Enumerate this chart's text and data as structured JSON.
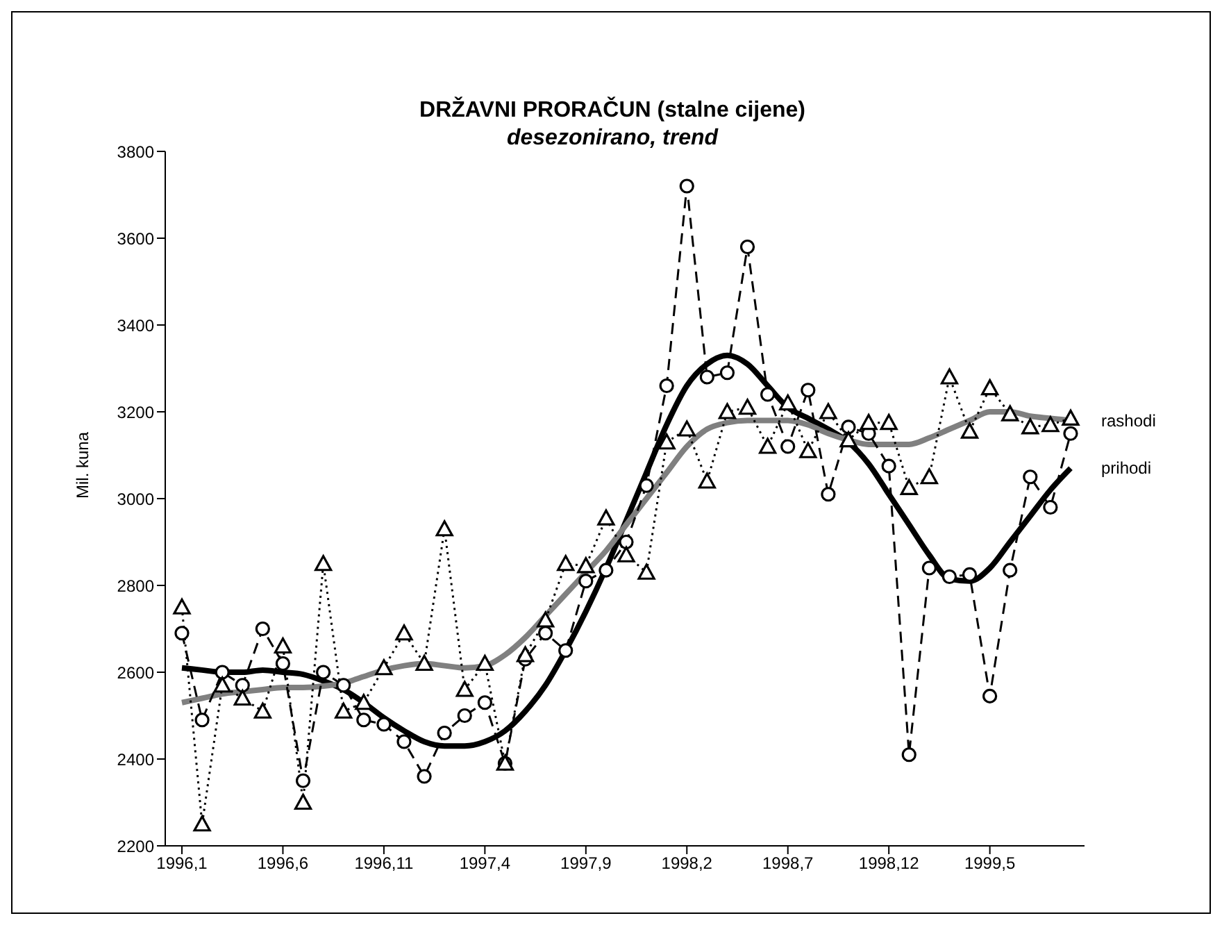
{
  "chart_data": {
    "type": "line",
    "title": "DRŽAVNI PRORAČUN (stalne cijene)",
    "subtitle": "desezonirano, trend",
    "ylabel": "Mil. kuna",
    "categories": [
      "1996,1",
      null,
      null,
      null,
      null,
      "1996,6",
      null,
      null,
      null,
      null,
      "1996,11",
      null,
      null,
      null,
      null,
      "1997,4",
      null,
      null,
      null,
      null,
      "1997,9",
      null,
      null,
      null,
      null,
      "1998,2",
      null,
      null,
      null,
      null,
      "1998,7",
      null,
      null,
      null,
      null,
      "1998,12",
      null,
      null,
      null,
      null,
      "1999,5",
      null,
      null,
      null,
      null
    ],
    "ylim": [
      2200,
      3800
    ],
    "yticks": [
      2200,
      2400,
      2600,
      2800,
      3000,
      3200,
      3400,
      3600,
      3800
    ],
    "series": [
      {
        "color": "#000000",
        "marker": "triangle",
        "line_style": "dotted",
        "values": [
          2750,
          2250,
          2570,
          2540,
          2510,
          2660,
          2300,
          2850,
          2510,
          2530,
          2610,
          2690,
          2620,
          2930,
          2560,
          2620,
          2390,
          2640,
          2720,
          2850,
          2845,
          2955,
          2870,
          2830,
          3130,
          3160,
          3040,
          3200,
          3210,
          3120,
          3220,
          3110,
          3200,
          3135,
          3175,
          3175,
          3025,
          3050,
          3280,
          3155,
          3255,
          3195,
          3165,
          3170,
          3185
        ]
      },
      {
        "color": "#000000",
        "marker": "circle",
        "line_style": "dashed",
        "values": [
          2690,
          2490,
          2600,
          2570,
          2700,
          2620,
          2350,
          2600,
          2570,
          2490,
          2480,
          2440,
          2360,
          2460,
          2500,
          2530,
          2390,
          2630,
          2690,
          2650,
          2810,
          2835,
          2900,
          3030,
          3260,
          3720,
          3280,
          3290,
          3580,
          3240,
          3120,
          3250,
          3010,
          3165,
          3150,
          3075,
          2410,
          2840,
          2820,
          2825,
          2545,
          2835,
          3050,
          2980,
          3150
        ]
      },
      {
        "name": "rashodi",
        "color": "#808080",
        "marker": "none",
        "line_style": "solid",
        "values": [
          2530,
          2540,
          2550,
          2555,
          2560,
          2565,
          2565,
          2568,
          2575,
          2590,
          2605,
          2615,
          2620,
          2615,
          2610,
          2615,
          2640,
          2680,
          2730,
          2780,
          2830,
          2880,
          2940,
          3000,
          3060,
          3120,
          3160,
          3175,
          3180,
          3180,
          3180,
          3170,
          3150,
          3135,
          3125,
          3125,
          3125,
          3140,
          3160,
          3180,
          3200,
          3200,
          3190,
          3185,
          3180
        ]
      },
      {
        "name": "prihodi",
        "color": "#000000",
        "marker": "none",
        "line_style": "solid",
        "values": [
          2610,
          2605,
          2600,
          2600,
          2605,
          2600,
          2595,
          2580,
          2560,
          2530,
          2495,
          2465,
          2440,
          2430,
          2430,
          2440,
          2465,
          2510,
          2570,
          2650,
          2740,
          2840,
          2950,
          3060,
          3170,
          3260,
          3310,
          3330,
          3310,
          3260,
          3210,
          3185,
          3160,
          3130,
          3080,
          3010,
          2940,
          2870,
          2815,
          2810,
          2840,
          2900,
          2960,
          3020,
          3070
        ]
      }
    ]
  }
}
